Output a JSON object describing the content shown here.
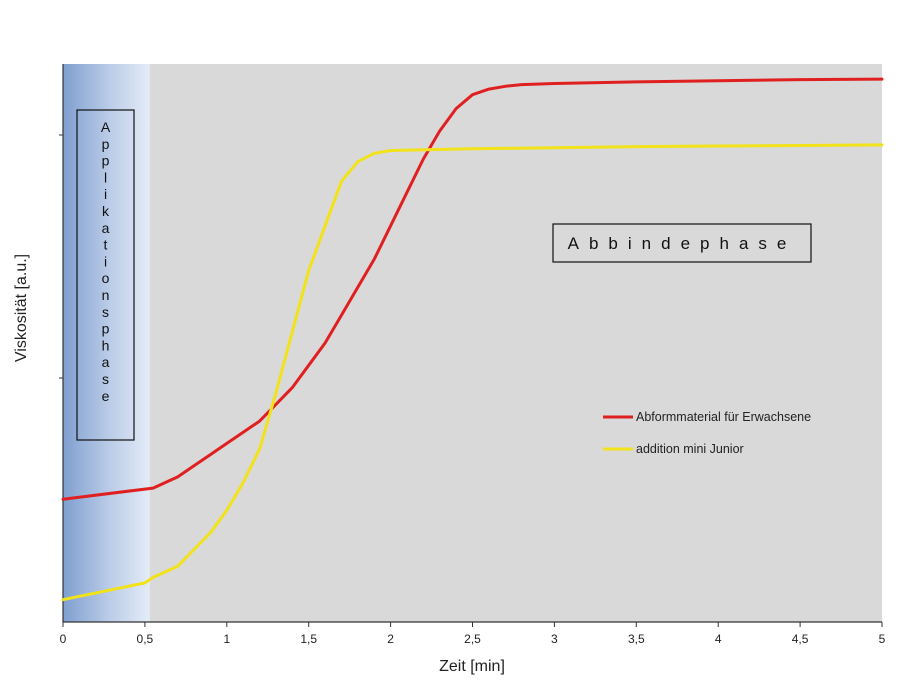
{
  "chart_data": {
    "type": "line",
    "title": "",
    "xlabel": "Zeit [min]",
    "ylabel": "Viskosität [a.u.]",
    "xlim": [
      0,
      5
    ],
    "ylim": [
      0,
      1
    ],
    "x_ticks": [
      0,
      0.5,
      1,
      1.5,
      2,
      2.5,
      3,
      3.5,
      4,
      4.5,
      5
    ],
    "x_tick_labels": [
      "0",
      "0,5",
      "1",
      "1,5",
      "2",
      "2,5",
      "3",
      "3,5",
      "4",
      "4,5",
      "5"
    ],
    "y_tick_labels": [],
    "grid": false,
    "legend_position": "right",
    "phases": [
      {
        "label": "Applikationsphase",
        "x_start": 0,
        "x_end": 0.53,
        "orientation": "vertical"
      },
      {
        "label": "Abbindephase",
        "x_start": 0.53,
        "x_end": 5,
        "orientation": "horizontal"
      }
    ],
    "series": [
      {
        "name": "Abformmaterial für Erwachsene",
        "color": "#e02020",
        "x": [
          0,
          0.55,
          0.7,
          0.8,
          0.9,
          1.0,
          1.1,
          1.2,
          1.3,
          1.4,
          1.5,
          1.6,
          1.7,
          1.8,
          1.9,
          2.0,
          2.1,
          2.2,
          2.3,
          2.4,
          2.5,
          2.6,
          2.7,
          2.8,
          3.0,
          3.5,
          4.0,
          4.5,
          5.0
        ],
        "values": [
          0.22,
          0.24,
          0.26,
          0.28,
          0.3,
          0.32,
          0.34,
          0.36,
          0.39,
          0.42,
          0.46,
          0.5,
          0.55,
          0.6,
          0.65,
          0.71,
          0.77,
          0.83,
          0.88,
          0.92,
          0.945,
          0.955,
          0.96,
          0.963,
          0.965,
          0.968,
          0.97,
          0.972,
          0.973
        ]
      },
      {
        "name": "addition mini Junior",
        "color": "#f2e21a",
        "x": [
          0,
          0.5,
          0.55,
          0.7,
          0.8,
          0.9,
          1.0,
          1.1,
          1.2,
          1.3,
          1.4,
          1.5,
          1.6,
          1.7,
          1.8,
          1.9,
          2.0,
          2.5,
          3.0,
          3.5,
          4.0,
          4.5,
          5.0
        ],
        "values": [
          0.04,
          0.07,
          0.08,
          0.1,
          0.13,
          0.16,
          0.2,
          0.25,
          0.31,
          0.41,
          0.52,
          0.63,
          0.71,
          0.79,
          0.825,
          0.84,
          0.845,
          0.848,
          0.85,
          0.852,
          0.853,
          0.854,
          0.855
        ]
      }
    ]
  }
}
